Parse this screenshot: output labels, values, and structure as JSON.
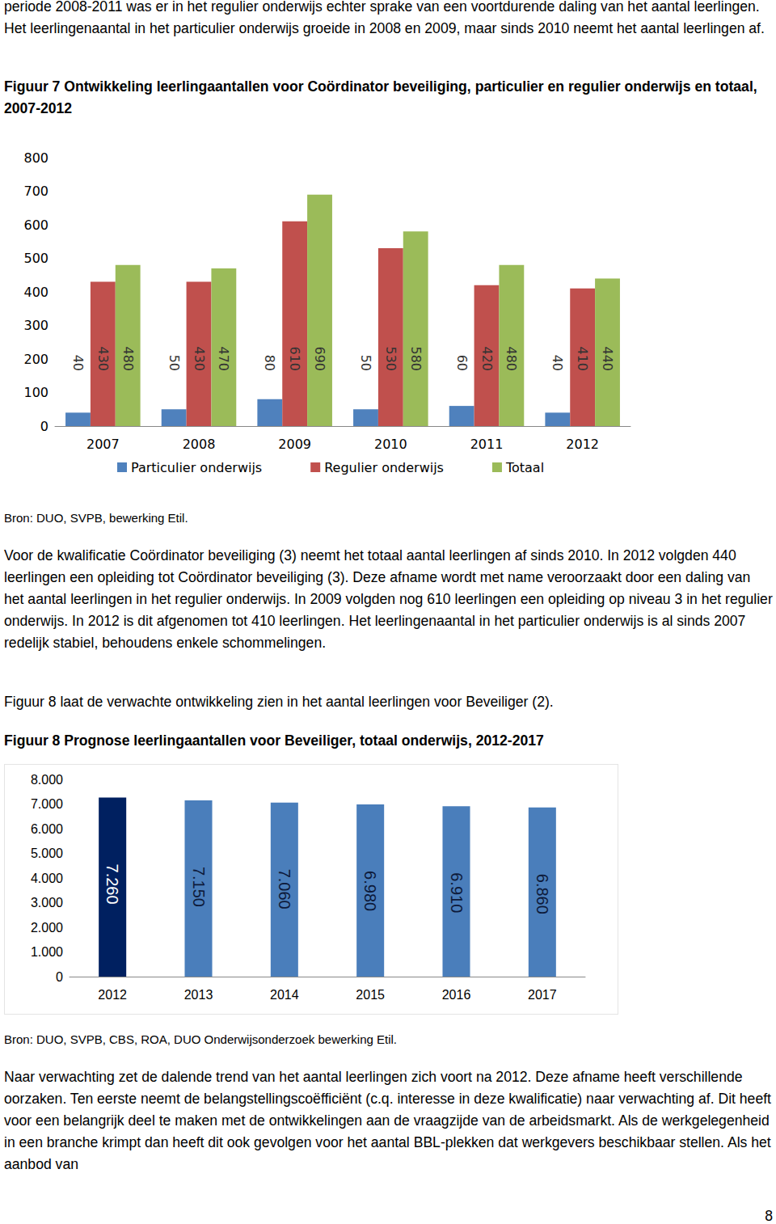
{
  "intro": "periode 2008-2011 was er in het regulier onderwijs echter sprake van een voortdurende daling van het aantal leerlingen. Het leerlingenaantal in het particulier onderwijs groeide in 2008 en 2009, maar sinds 2010 neemt het aantal leerlingen af.",
  "chart_data": [
    {
      "type": "bar",
      "title": "Figuur 7 Ontwikkeling leerlingaantallen voor Coördinator beveiliging, particulier en regulier onderwijs en totaal, 2007-2012",
      "categories": [
        "2007",
        "2008",
        "2009",
        "2010",
        "2011",
        "2012"
      ],
      "series": [
        {
          "name": "Particulier onderwijs",
          "color": "#4f81bd",
          "values": [
            40,
            50,
            80,
            50,
            60,
            40
          ]
        },
        {
          "name": "Regulier onderwijs",
          "color": "#c0504d",
          "values": [
            430,
            430,
            610,
            530,
            420,
            410
          ]
        },
        {
          "name": "Totaal",
          "color": "#9bbb59",
          "values": [
            480,
            470,
            690,
            580,
            480,
            440
          ]
        }
      ],
      "ylim": [
        0,
        800
      ],
      "yticks": [
        0,
        100,
        200,
        300,
        400,
        500,
        600,
        700,
        800
      ],
      "grid": false,
      "legend": "bottom",
      "data_labels": true
    },
    {
      "type": "bar",
      "title": "Figuur 8 Prognose leerlingaantallen voor Beveiliger, totaal onderwijs, 2012-2017",
      "categories": [
        "2012",
        "2013",
        "2014",
        "2015",
        "2016",
        "2017"
      ],
      "values": [
        7260,
        7150,
        7060,
        6980,
        6910,
        6860
      ],
      "value_labels": [
        "7.260",
        "7.150",
        "7.060",
        "6.980",
        "6.910",
        "6.860"
      ],
      "colors": [
        "#002060",
        "#4a7ebb",
        "#4a7ebb",
        "#4a7ebb",
        "#4a7ebb",
        "#4a7ebb"
      ],
      "ylim": [
        0,
        8000
      ],
      "yticks": [
        0,
        {
          "value": 1000,
          "label": "1.000"
        },
        {
          "value": 2000,
          "label": "2.000"
        },
        {
          "value": 3000,
          "label": "3.000"
        },
        {
          "value": 4000,
          "label": "4.000"
        },
        {
          "value": 5000,
          "label": "5.000"
        },
        {
          "value": 6000,
          "label": "6.000"
        },
        {
          "value": 7000,
          "label": "7.000"
        },
        {
          "value": 8000,
          "label": "8.000"
        }
      ],
      "grid": false,
      "data_labels": true
    }
  ],
  "sources": [
    "Bron: DUO, SVPB, bewerking Etil.",
    "Bron: DUO, SVPB, CBS, ROA, DUO Onderwijsonderzoek bewerking Etil."
  ],
  "paragraphs_after_figure7": [
    "Voor de kwalificatie Coördinator beveiliging (3) neemt het totaal aantal leerlingen af sinds 2010. In 2012 volgden 440 leerlingen een opleiding tot Coördinator beveiliging (3). Deze afname wordt met name veroorzaakt door een daling van het aantal leerlingen in het regulier onderwijs. In 2009 volgden nog 610 leerlingen een opleiding op niveau 3 in het regulier onderwijs. In 2012 is dit afgenomen tot 410 leerlingen. Het leerlingenaantal in het particulier onderwijs is al sinds 2007 redelijk stabiel, behoudens enkele schommelingen.",
    "Figuur 8 laat de verwachte ontwikkeling zien in het aantal leerlingen voor Beveiliger (2)."
  ],
  "paragraph_after_figure8": "Naar verwachting zet de dalende trend van het aantal leerlingen zich voort na 2012. Deze afname heeft verschillende oorzaken. Ten eerste neemt de belangstellingscoëfficiënt (c.q. interesse in deze kwalificatie) naar verwachting af. Dit heeft voor een belangrijk deel te maken met de ontwikkelingen aan de vraagzijde van de arbeidsmarkt. Als de werkgelegenheid in een branche krimpt dan heeft dit ook gevolgen voor het aantal BBL-plekken dat werkgevers beschikbaar stellen. Als het aanbod van",
  "page_number": "8"
}
